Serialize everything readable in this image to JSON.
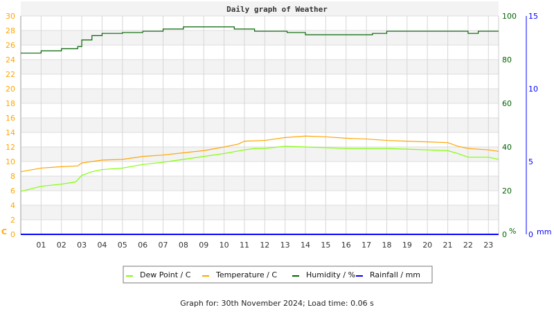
{
  "chart_data": {
    "type": "line",
    "title": "Daily graph of Weather",
    "x_ticks": [
      "01",
      "02",
      "03",
      "04",
      "05",
      "06",
      "07",
      "08",
      "09",
      "10",
      "11",
      "12",
      "13",
      "14",
      "15",
      "16",
      "17",
      "18",
      "19",
      "20",
      "21",
      "22",
      "23"
    ],
    "x_unit": "hour",
    "xlim": [
      0,
      23.5
    ],
    "grid": true,
    "legend_placement": "bottom",
    "axes": {
      "left": {
        "label": "C",
        "range": [
          0,
          30
        ],
        "ticks": [
          0,
          2,
          4,
          6,
          8,
          10,
          12,
          14,
          16,
          18,
          20,
          22,
          24,
          26,
          28,
          30
        ],
        "color": "#ffa500"
      },
      "right1": {
        "label": "%",
        "range": [
          0,
          100
        ],
        "ticks": [
          0,
          20,
          40,
          60,
          80,
          100
        ],
        "color": "#006400"
      },
      "right2": {
        "label": "mm",
        "range": [
          0,
          15
        ],
        "ticks": [
          0,
          5,
          10,
          15
        ],
        "color": "#0000ff"
      }
    },
    "series": [
      {
        "name": "Dew Point / C",
        "axis": "left",
        "color": "#80ff00",
        "x": [
          0,
          1,
          2,
          2.7,
          3,
          3.5,
          4,
          5,
          6,
          7,
          8,
          9,
          10,
          11,
          11.5,
          12,
          13,
          14,
          15,
          16,
          17,
          18,
          19,
          20,
          21,
          21.5,
          22,
          23,
          23.5
        ],
        "y": [
          5.9,
          6.6,
          6.9,
          7.2,
          8.1,
          8.6,
          8.9,
          9.1,
          9.6,
          9.9,
          10.3,
          10.7,
          11.1,
          11.6,
          11.8,
          11.8,
          12.1,
          12.0,
          11.9,
          11.8,
          11.8,
          11.8,
          11.7,
          11.6,
          11.5,
          11.1,
          10.6,
          10.6,
          10.3
        ]
      },
      {
        "name": "Temperature / C",
        "axis": "left",
        "color": "#ffa500",
        "x": [
          0,
          1,
          2,
          2.8,
          3,
          3.5,
          4,
          5,
          6,
          7,
          8,
          9,
          10,
          10.7,
          11,
          12,
          13,
          14,
          15,
          16,
          17,
          18,
          19,
          20,
          21,
          21.5,
          22,
          23,
          23.5
        ],
        "y": [
          8.6,
          9.1,
          9.3,
          9.4,
          9.8,
          10.0,
          10.2,
          10.3,
          10.7,
          10.9,
          11.2,
          11.5,
          12.0,
          12.4,
          12.8,
          12.9,
          13.3,
          13.5,
          13.4,
          13.2,
          13.1,
          12.9,
          12.8,
          12.7,
          12.6,
          12.1,
          11.8,
          11.6,
          11.4
        ]
      },
      {
        "name": "Humidity / %",
        "axis": "right1",
        "color": "#006400",
        "step": true,
        "x": [
          0,
          1,
          2,
          2.8,
          3,
          3.5,
          4,
          5,
          6,
          7,
          8,
          10.5,
          11.5,
          13.1,
          14,
          17.3,
          18,
          22,
          22.5,
          23.5
        ],
        "y": [
          83,
          84,
          85,
          86,
          89,
          91,
          92,
          92.4,
          93,
          94,
          95,
          94,
          93,
          92.4,
          91.4,
          92,
          93,
          92,
          93,
          93
        ]
      },
      {
        "name": "Rainfall / mm",
        "axis": "right2",
        "color": "#0000ff",
        "x": [
          0,
          23.5
        ],
        "y": [
          0,
          0
        ]
      }
    ]
  },
  "footer": "Graph for: 30th November 2024; Load time: 0.06 s"
}
